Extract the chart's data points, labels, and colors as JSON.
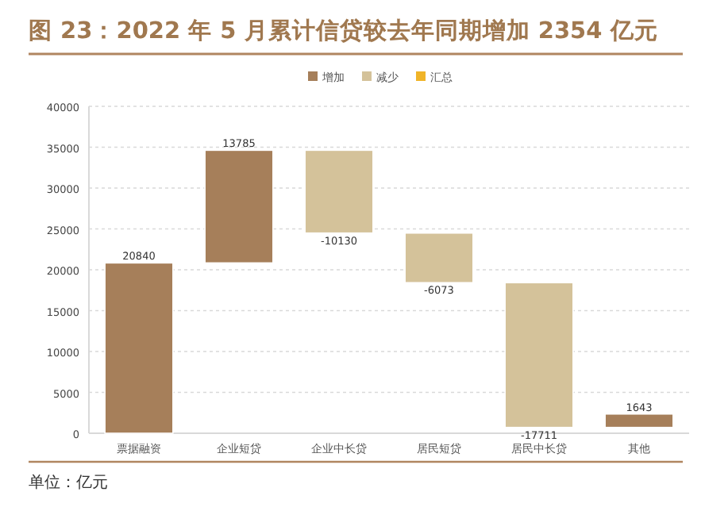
{
  "chart_data": {
    "type": "bar",
    "title": "图 23：2022 年 5 月累计信贷较去年同期增加 2354 亿元",
    "categories": [
      "票据融资",
      "企业短贷",
      "企业中长贷",
      "居民短贷",
      "居民中长贷",
      "其他"
    ],
    "series": [
      {
        "name": "增加",
        "color": "#a67f5a",
        "base": [
          0,
          20840,
          null,
          null,
          null,
          711
        ],
        "values": [
          20840,
          13785,
          null,
          null,
          null,
          1643
        ]
      },
      {
        "name": "减少",
        "color": "#d4c29a",
        "base": [
          null,
          null,
          34625,
          24495,
          18422,
          null
        ],
        "values": [
          null,
          null,
          -10130,
          -6073,
          -17711,
          null
        ]
      },
      {
        "name": "汇总",
        "color": "#f0b428",
        "values": [
          null,
          null,
          null,
          null,
          null,
          null
        ]
      }
    ],
    "ylim": [
      0,
      40000
    ],
    "yticks": [
      0,
      5000,
      10000,
      15000,
      20000,
      25000,
      30000,
      35000,
      40000
    ],
    "grid": "y",
    "legend": "top",
    "data_labels": true,
    "annotations": [
      "单位：亿元"
    ]
  }
}
